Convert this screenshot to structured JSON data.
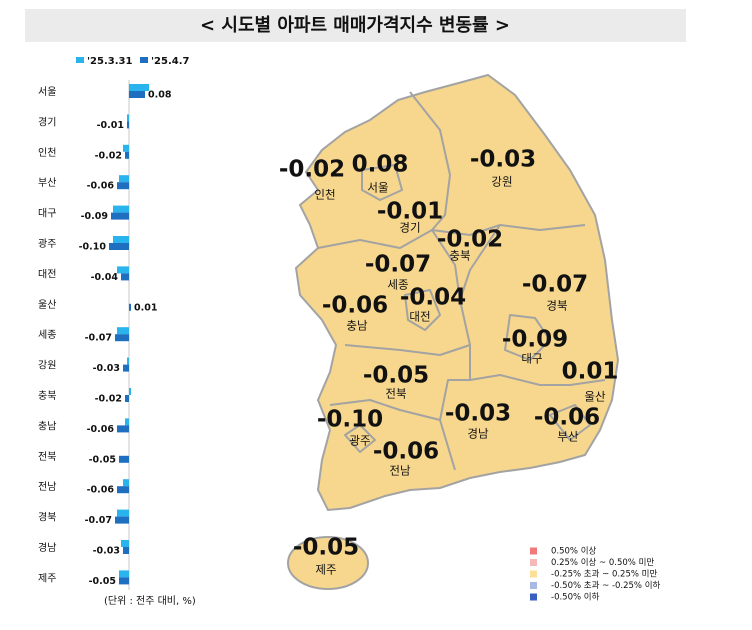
{
  "chart_data": {
    "type": "hbar",
    "title": "< 시도별 아파트 매매가격지수 변동률 >",
    "note": "(단위 : 전주 대비, %)",
    "categories": [
      "서울",
      "경기",
      "인천",
      "부산",
      "대구",
      "광주",
      "대전",
      "울산",
      "세종",
      "강원",
      "충북",
      "충남",
      "전북",
      "전남",
      "경북",
      "경남",
      "제주"
    ],
    "series": [
      {
        "name": "'25.3.31",
        "color": "#29b4ee",
        "values": [
          0.1,
          -0.01,
          -0.03,
          -0.05,
          -0.08,
          -0.08,
          -0.06,
          0.0,
          -0.06,
          -0.01,
          0.01,
          -0.02,
          0.0,
          -0.03,
          -0.06,
          -0.04,
          -0.05
        ]
      },
      {
        "name": "'25.4.7",
        "color": "#1f6fc1",
        "values": [
          0.08,
          -0.01,
          -0.02,
          -0.06,
          -0.09,
          -0.1,
          -0.04,
          0.01,
          -0.07,
          -0.03,
          -0.02,
          -0.06,
          -0.05,
          -0.06,
          -0.07,
          -0.03,
          -0.05
        ],
        "value_labels": [
          "0.08",
          "-0.01",
          "-0.02",
          "-0.06",
          "-0.09",
          "-0.10",
          "-0.04",
          "0.01",
          "-0.07",
          "-0.03",
          "-0.02",
          "-0.06",
          "-0.05",
          "-0.06",
          "-0.07",
          "-0.03",
          "-0.05"
        ]
      }
    ],
    "xlim": [
      -0.3,
      0.2
    ]
  },
  "map": {
    "fill": "#f6d78d",
    "legend": [
      {
        "label": "0.50% 이상",
        "color": "#f07a7a"
      },
      {
        "label": "0.25% 이상 ~ 0.50% 미만",
        "color": "#f5b8b8"
      },
      {
        "label": "-0.25% 초과 ~ 0.25% 미만",
        "color": "#fbe09a"
      },
      {
        "label": "-0.50% 초과 ~ -0.25% 이하",
        "color": "#aab9e2"
      },
      {
        "label": "-0.50% 이하",
        "color": "#3a5fc2"
      }
    ]
  }
}
